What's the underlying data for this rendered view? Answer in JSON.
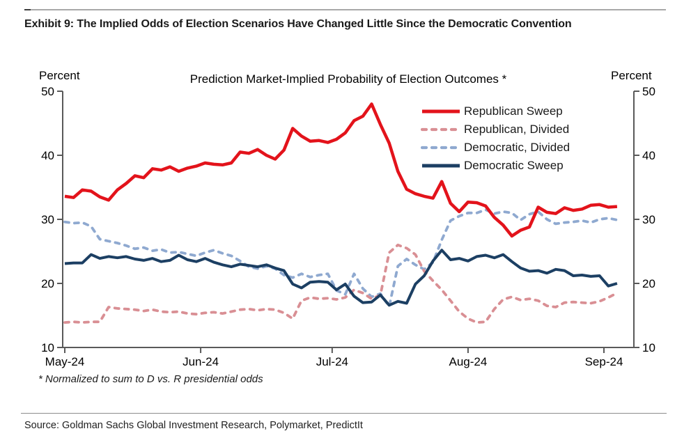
{
  "page": {
    "exhibit_title": "Exhibit 9: The Implied Odds of Election Scenarios Have Changed Little Since the Democratic Convention",
    "source": "Source: Goldman Sachs Global Investment Research, Polymarket, PredictIt"
  },
  "chart": {
    "left_axis_label": "Percent",
    "right_axis_label": "Percent",
    "footnote": "* Normalized to sum to D vs. R presidential odds",
    "axis_color": "#595959",
    "text_color": "#000000"
  },
  "chart_data": {
    "type": "line",
    "title": "Prediction Market-Implied Probability of Election Outcomes *",
    "xlabel": "",
    "ylabel": "Percent",
    "ylim": [
      10,
      50
    ],
    "y_ticks": [
      10,
      20,
      30,
      40,
      50
    ],
    "grid": false,
    "legend_position": "top-right",
    "x_unit": "days since 2024-05-01",
    "x_domain": [
      0,
      123
    ],
    "x_tick_labels": [
      {
        "label": "May-24",
        "day": 0
      },
      {
        "label": "Jun-24",
        "day": 31
      },
      {
        "label": "Jul-24",
        "day": 61
      },
      {
        "label": "Aug-24",
        "day": 92
      },
      {
        "label": "Sep-24",
        "day": 123
      }
    ],
    "x": [
      0,
      2,
      4,
      6,
      8,
      10,
      12,
      14,
      16,
      18,
      20,
      22,
      24,
      26,
      28,
      30,
      32,
      34,
      36,
      38,
      40,
      42,
      44,
      46,
      48,
      50,
      52,
      54,
      56,
      58,
      60,
      62,
      64,
      66,
      68,
      70,
      72,
      74,
      76,
      78,
      80,
      82,
      84,
      86,
      88,
      90,
      92,
      94,
      96,
      98,
      100,
      102,
      104,
      106,
      108,
      110,
      112,
      114,
      116,
      118,
      120,
      122,
      124,
      126
    ],
    "series": [
      {
        "name": "Republican Sweep",
        "color": "#e3131b",
        "style": "solid",
        "values": [
          33.6,
          33.4,
          34.6,
          34.4,
          33.5,
          33.0,
          34.6,
          35.6,
          36.8,
          36.5,
          37.9,
          37.7,
          38.2,
          37.5,
          38.0,
          38.3,
          38.8,
          38.6,
          38.5,
          38.8,
          40.5,
          40.3,
          40.9,
          40.0,
          39.4,
          40.8,
          44.2,
          43.0,
          42.2,
          42.3,
          42.0,
          42.5,
          43.5,
          45.4,
          46.1,
          48.0,
          44.8,
          41.9,
          37.5,
          34.7,
          34.0,
          33.6,
          33.3,
          35.9,
          32.5,
          31.2,
          32.7,
          32.6,
          32.1,
          30.3,
          29.1,
          27.4,
          28.3,
          28.8,
          31.9,
          31.1,
          30.9,
          31.8,
          31.4,
          31.6,
          32.2,
          32.3,
          31.9,
          32.0
        ]
      },
      {
        "name": "Republican, Divided",
        "color": "#d98f94",
        "style": "dashed",
        "values": [
          13.9,
          14.0,
          13.9,
          14.0,
          14.0,
          16.3,
          16.1,
          16.0,
          15.9,
          15.7,
          15.9,
          15.6,
          15.5,
          15.6,
          15.3,
          15.2,
          15.4,
          15.5,
          15.3,
          15.6,
          15.9,
          16.0,
          15.8,
          16.0,
          15.9,
          15.4,
          14.5,
          17.3,
          17.8,
          17.6,
          17.7,
          17.5,
          17.8,
          19.0,
          18.5,
          17.6,
          18.2,
          24.8,
          26.0,
          25.5,
          24.5,
          21.9,
          20.4,
          19.0,
          17.3,
          15.6,
          14.5,
          13.9,
          14.0,
          16.0,
          17.5,
          17.9,
          17.4,
          17.6,
          17.3,
          16.5,
          16.3,
          17.0,
          17.1,
          17.0,
          16.9,
          17.2,
          17.8,
          18.5
        ]
      },
      {
        "name": "Democratic, Divided",
        "color": "#8fa9d0",
        "style": "dashed",
        "values": [
          29.6,
          29.4,
          29.5,
          28.9,
          26.9,
          26.6,
          26.3,
          25.9,
          25.4,
          25.6,
          25.1,
          25.3,
          24.8,
          24.9,
          24.6,
          24.3,
          24.8,
          25.2,
          24.7,
          24.3,
          23.5,
          22.6,
          22.3,
          22.7,
          22.3,
          21.3,
          20.9,
          21.5,
          21.0,
          21.3,
          21.5,
          18.9,
          18.3,
          21.5,
          19.2,
          17.9,
          18.4,
          16.4,
          22.7,
          23.8,
          22.9,
          22.2,
          23.3,
          26.8,
          29.8,
          30.5,
          31.0,
          31.0,
          31.5,
          30.9,
          31.2,
          31.0,
          29.9,
          30.8,
          31.2,
          30.0,
          29.3,
          29.5,
          29.6,
          29.8,
          29.5,
          30.0,
          30.2,
          29.9
        ]
      },
      {
        "name": "Democratic Sweep",
        "color": "#1c3f63",
        "style": "solid",
        "values": [
          23.1,
          23.2,
          23.2,
          24.5,
          23.9,
          24.2,
          24.0,
          24.2,
          23.8,
          23.6,
          23.9,
          23.4,
          23.6,
          24.4,
          23.7,
          23.4,
          23.9,
          23.3,
          22.9,
          22.6,
          23.0,
          22.8,
          22.6,
          22.9,
          22.4,
          22.0,
          19.9,
          19.3,
          20.2,
          20.3,
          20.2,
          19.0,
          19.9,
          18.0,
          17.0,
          17.1,
          18.2,
          16.6,
          17.2,
          16.9,
          19.9,
          21.2,
          23.5,
          25.2,
          23.7,
          23.9,
          23.5,
          24.2,
          24.4,
          24.0,
          24.5,
          23.4,
          22.4,
          21.9,
          22.0,
          21.6,
          22.2,
          22.0,
          21.2,
          21.3,
          21.1,
          21.2,
          19.6,
          20.0
        ]
      }
    ]
  }
}
